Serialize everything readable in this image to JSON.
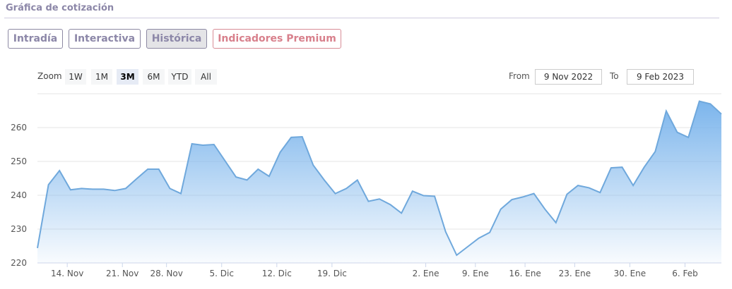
{
  "header": {
    "title": "Gráfica de cotización"
  },
  "tabs": [
    {
      "label": "Intradía",
      "active": false
    },
    {
      "label": "Interactiva",
      "active": false
    },
    {
      "label": "Histórica",
      "active": true
    },
    {
      "label": "Indicadores Premium",
      "active": false
    }
  ],
  "range_selector": {
    "zoom_label": "Zoom",
    "buttons": [
      "1W",
      "1M",
      "3M",
      "6M",
      "YTD",
      "All"
    ],
    "selected": "3M",
    "from_label": "From",
    "from_value": "9 Nov 2022",
    "to_label": "To",
    "to_value": "9 Feb 2023"
  },
  "colors": {
    "line": "#7cb5ec",
    "fill_top": "#7cb5ec",
    "premium": "#d8808c",
    "tab_text": "#8c87a8"
  },
  "chart_data": {
    "type": "area",
    "xaxis": "ordinal-date",
    "ylim": [
      220,
      270
    ],
    "yticks": [
      220,
      230,
      240,
      250,
      260
    ],
    "grid": true,
    "xticks": [
      {
        "date": "2022-11-14",
        "label": "14. Nov"
      },
      {
        "date": "2022-11-21",
        "label": "21. Nov"
      },
      {
        "date": "2022-11-28",
        "label": "28. Nov"
      },
      {
        "date": "2022-12-05",
        "label": "5. Dic"
      },
      {
        "date": "2022-12-12",
        "label": "12. Dic"
      },
      {
        "date": "2022-12-19",
        "label": "19. Dic"
      },
      {
        "date": "2023-01-02",
        "label": "2. Ene"
      },
      {
        "date": "2023-01-09",
        "label": "9. Ene"
      },
      {
        "date": "2023-01-16",
        "label": "16. Ene"
      },
      {
        "date": "2023-01-23",
        "label": "23. Ene"
      },
      {
        "date": "2023-01-30",
        "label": "30. Ene"
      },
      {
        "date": "2023-02-06",
        "label": "6. Feb"
      }
    ],
    "series": [
      {
        "points": [
          [
            "2022-11-09",
            224.4
          ],
          [
            "2022-11-10",
            243.1
          ],
          [
            "2022-11-11",
            247.3
          ],
          [
            "2022-11-14",
            241.6
          ],
          [
            "2022-11-15",
            242.0
          ],
          [
            "2022-11-16",
            241.8
          ],
          [
            "2022-11-17",
            241.8
          ],
          [
            "2022-11-18",
            241.4
          ],
          [
            "2022-11-21",
            242.0
          ],
          [
            "2022-11-22",
            244.9
          ],
          [
            "2022-11-23",
            247.7
          ],
          [
            "2022-11-25",
            247.7
          ],
          [
            "2022-11-28",
            242.0
          ],
          [
            "2022-11-29",
            240.5
          ],
          [
            "2022-11-30",
            255.2
          ],
          [
            "2022-12-01",
            254.8
          ],
          [
            "2022-12-02",
            255.0
          ],
          [
            "2022-12-05",
            250.2
          ],
          [
            "2022-12-06",
            245.4
          ],
          [
            "2022-12-07",
            244.5
          ],
          [
            "2022-12-08",
            247.7
          ],
          [
            "2022-12-09",
            245.6
          ],
          [
            "2022-12-12",
            252.7
          ],
          [
            "2022-12-13",
            257.1
          ],
          [
            "2022-12-14",
            257.3
          ],
          [
            "2022-12-15",
            248.9
          ],
          [
            "2022-12-16",
            244.5
          ],
          [
            "2022-12-19",
            240.5
          ],
          [
            "2022-12-20",
            242.0
          ],
          [
            "2022-12-21",
            244.5
          ],
          [
            "2022-12-22",
            238.2
          ],
          [
            "2022-12-23",
            238.9
          ],
          [
            "2022-12-27",
            237.2
          ],
          [
            "2022-12-28",
            234.7
          ],
          [
            "2022-12-29",
            241.2
          ],
          [
            "2022-12-30",
            239.9
          ],
          [
            "2023-01-03",
            239.7
          ],
          [
            "2023-01-04",
            229.2
          ],
          [
            "2023-01-05",
            222.3
          ],
          [
            "2023-01-06",
            224.8
          ],
          [
            "2023-01-09",
            227.3
          ],
          [
            "2023-01-10",
            229.0
          ],
          [
            "2023-01-11",
            235.9
          ],
          [
            "2023-01-12",
            238.7
          ],
          [
            "2023-01-13",
            239.5
          ],
          [
            "2023-01-17",
            240.5
          ],
          [
            "2023-01-18",
            235.9
          ],
          [
            "2023-01-19",
            231.9
          ],
          [
            "2023-01-20",
            240.3
          ],
          [
            "2023-01-23",
            242.9
          ],
          [
            "2023-01-24",
            242.2
          ],
          [
            "2023-01-25",
            240.8
          ],
          [
            "2023-01-26",
            248.1
          ],
          [
            "2023-01-27",
            248.3
          ],
          [
            "2023-01-30",
            242.9
          ],
          [
            "2023-01-31",
            248.3
          ],
          [
            "2023-02-01",
            252.9
          ],
          [
            "2023-02-02",
            264.9
          ],
          [
            "2023-02-03",
            258.6
          ],
          [
            "2023-02-06",
            257.1
          ],
          [
            "2023-02-07",
            267.8
          ],
          [
            "2023-02-08",
            267.0
          ],
          [
            "2023-02-09",
            264.0
          ]
        ]
      }
    ]
  }
}
